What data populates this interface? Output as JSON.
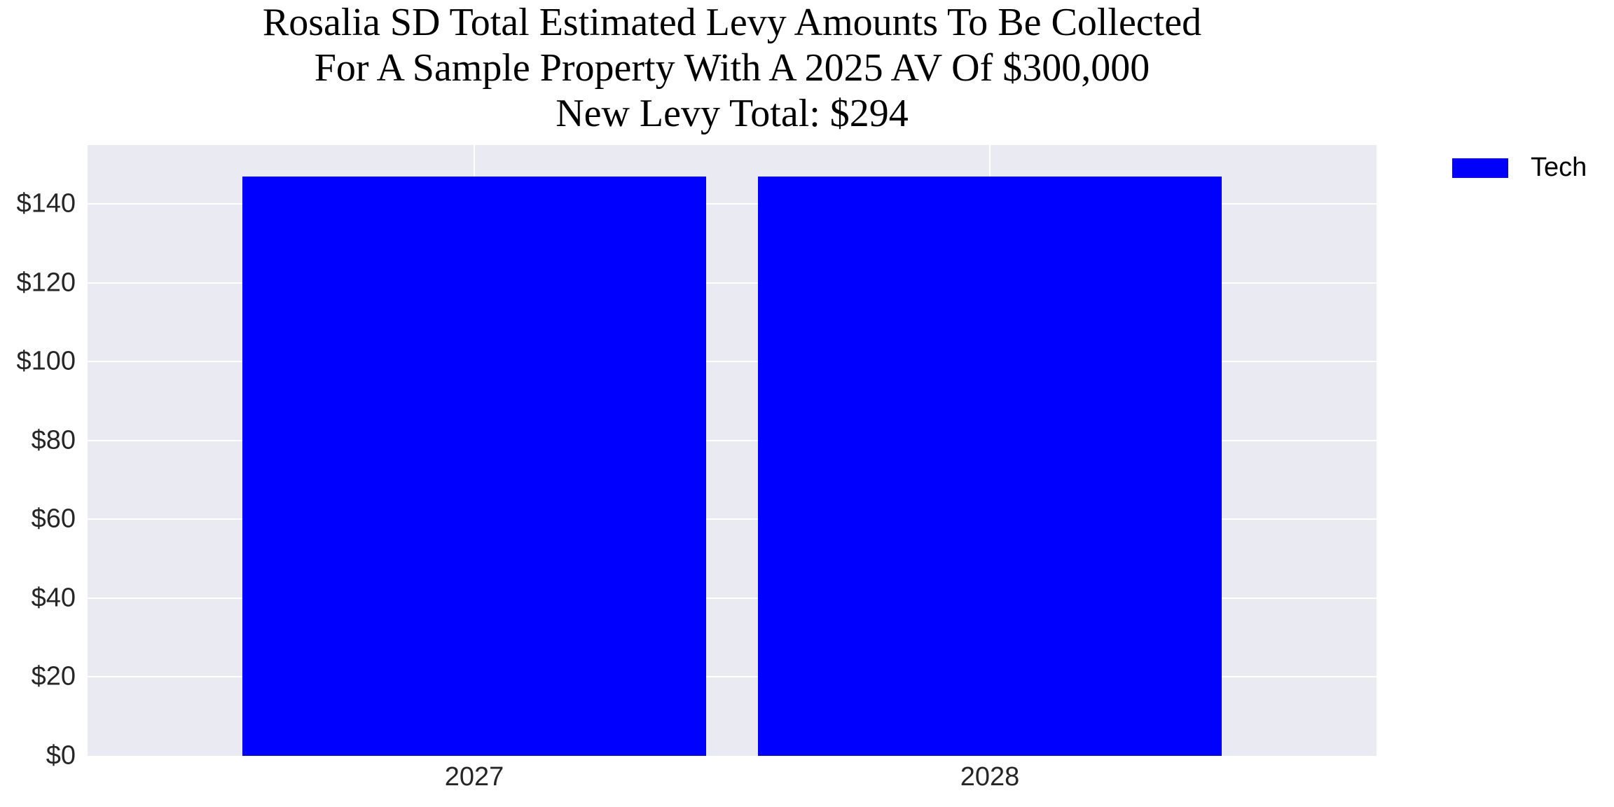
{
  "chart_data": {
    "type": "bar",
    "title": "Rosalia SD Total Estimated Levy Amounts To Be Collected\nFor A Sample Property With A 2025 AV Of $300,000\nNew Levy Total: $294",
    "title_lines": [
      "Rosalia SD Total Estimated Levy Amounts To Be Collected",
      "For A Sample Property With A 2025 AV Of $300,000",
      "New Levy Total: $294"
    ],
    "categories": [
      "2027",
      "2028"
    ],
    "series": [
      {
        "name": "Tech",
        "color": "#0000ff",
        "values": [
          147,
          147
        ]
      }
    ],
    "xlabel": "",
    "ylabel": "",
    "ylim": [
      0,
      155
    ],
    "yticks": [
      0,
      20,
      40,
      60,
      80,
      100,
      120,
      140
    ],
    "ytick_labels": [
      "$0",
      "$20",
      "$40",
      "$60",
      "$80",
      "$100",
      "$120",
      "$140"
    ],
    "grid": true,
    "legend_position": "upper right, outside plot",
    "background": "#eaeaf2"
  }
}
